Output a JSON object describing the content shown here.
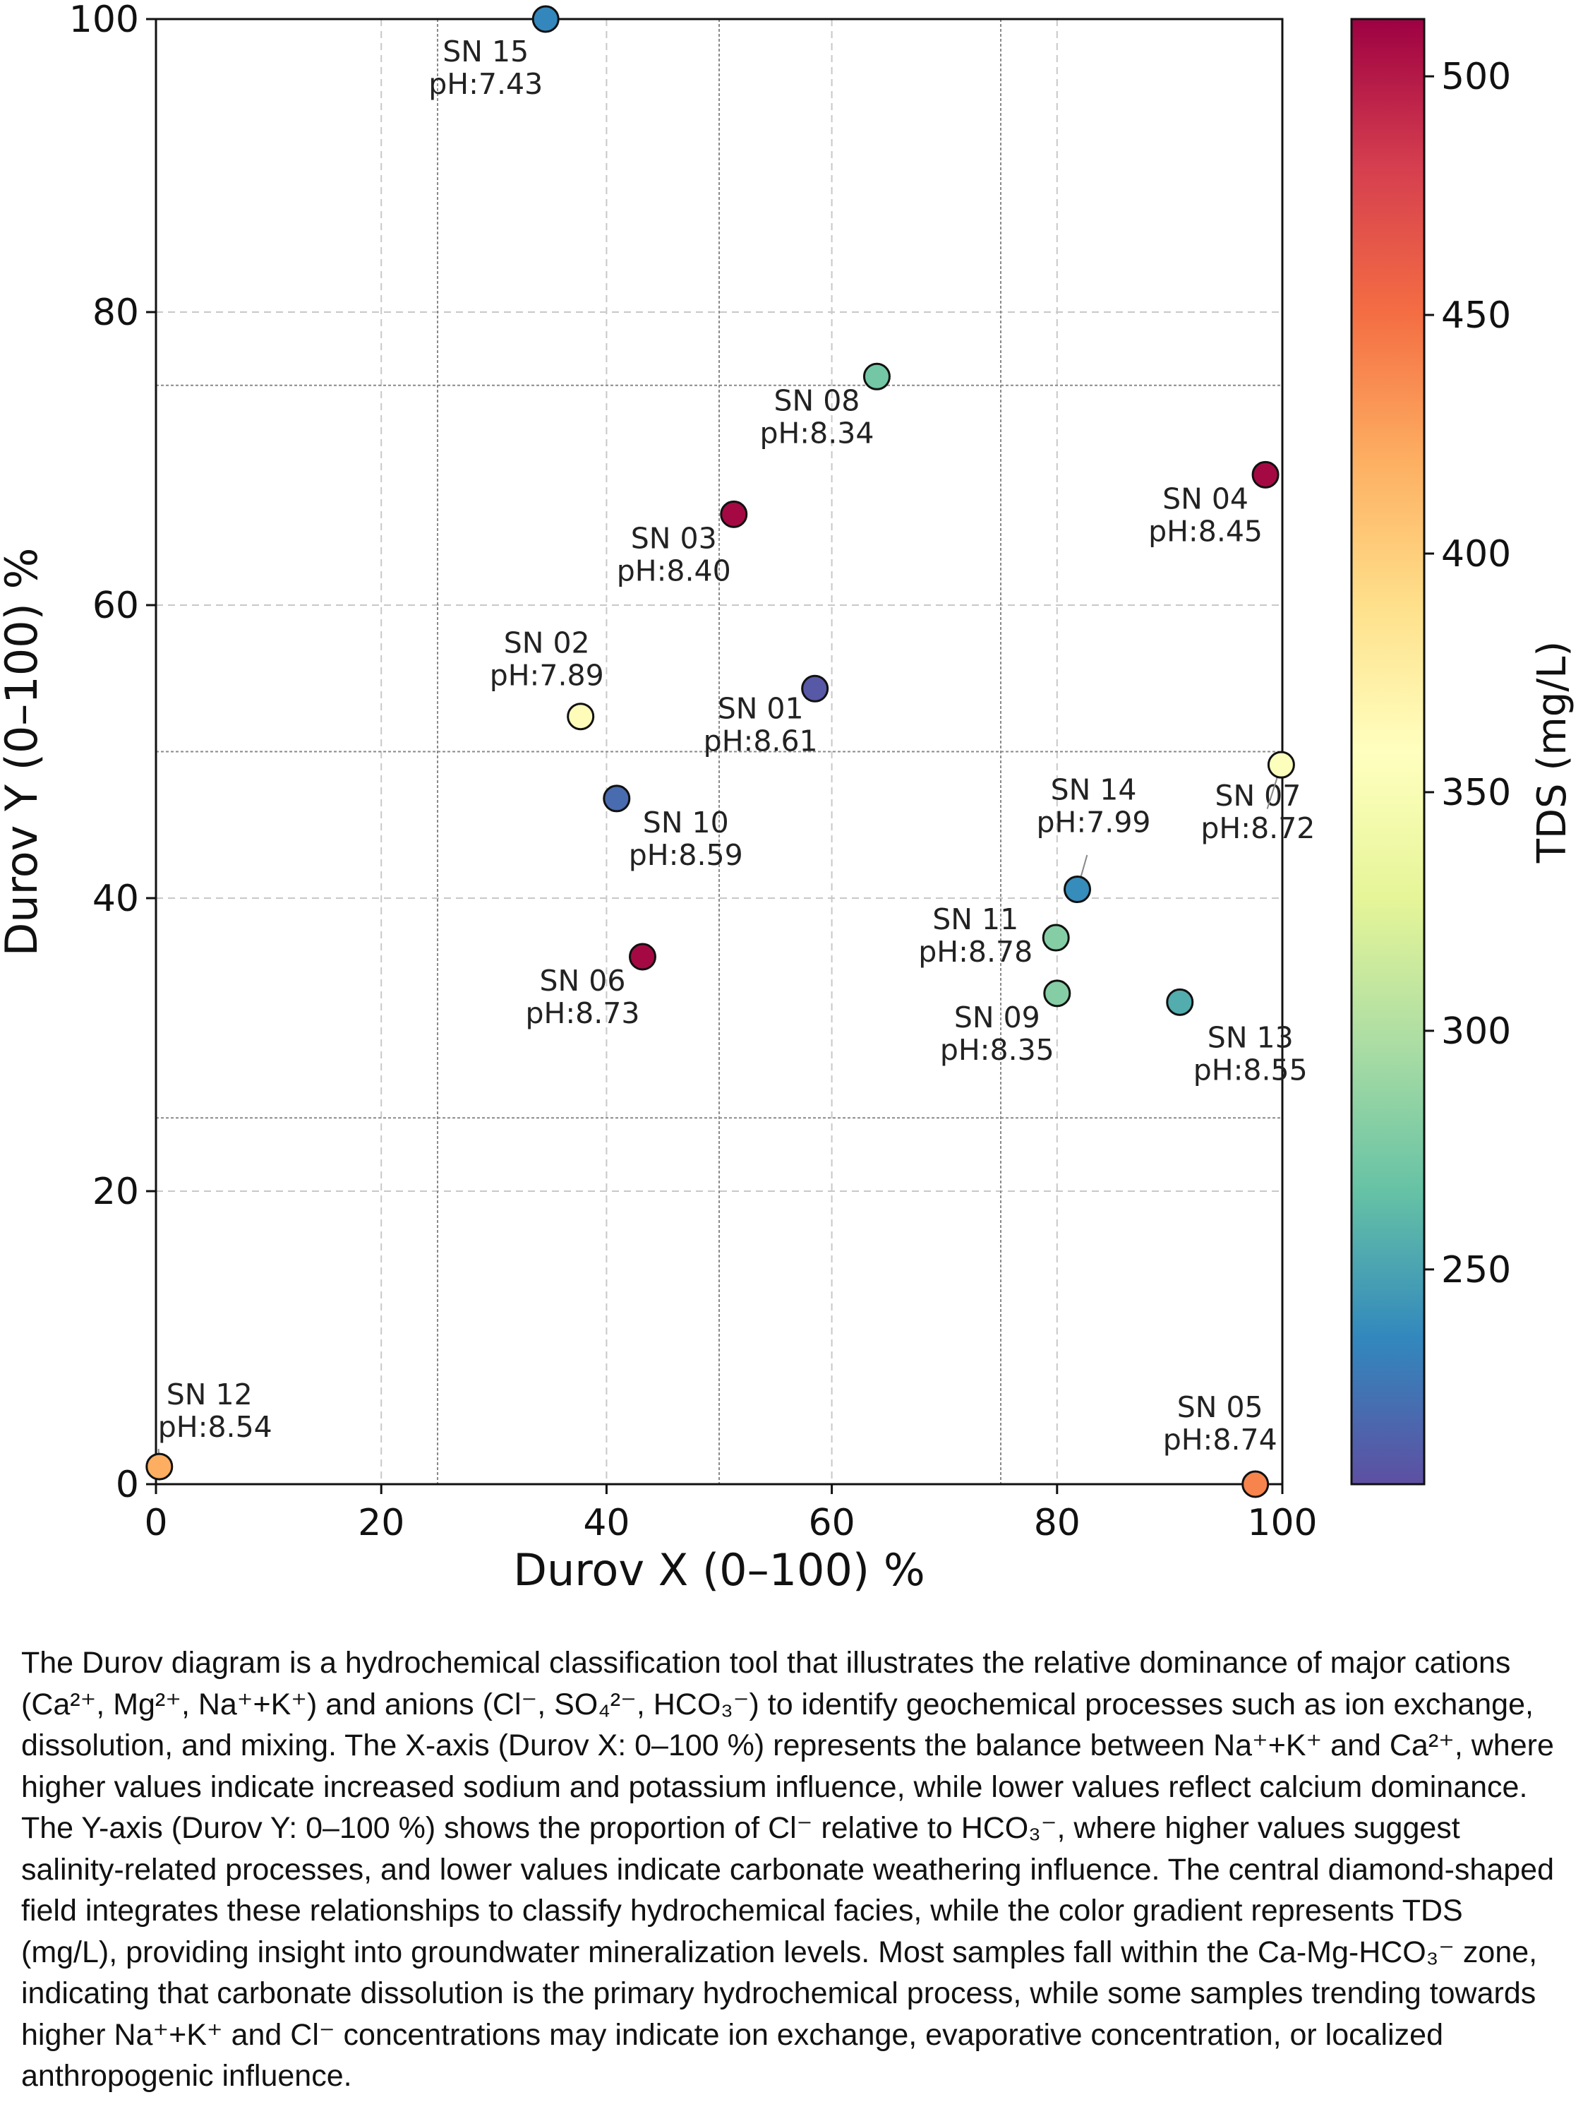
{
  "chart_data": {
    "type": "scatter",
    "xlabel": "Durov X (0–100) %",
    "ylabel": "Durov Y (0–100) %",
    "xlim": [
      0,
      100
    ],
    "ylim": [
      0,
      100
    ],
    "xticks": [
      "0",
      "20",
      "40",
      "60",
      "80",
      "100"
    ],
    "yticks": [
      "0",
      "20",
      "40",
      "60",
      "80",
      "100"
    ],
    "grid": true,
    "field_boundaries": {
      "x": [
        25,
        50,
        75
      ],
      "y": [
        25,
        50,
        75
      ]
    },
    "colorbar": {
      "label": "TDS (mg/L)",
      "range": [
        205,
        512
      ],
      "ticks": [
        "250",
        "300",
        "350",
        "400",
        "450",
        "500"
      ],
      "colormap": [
        "#5e4fa2",
        "#3288bd",
        "#66c2a5",
        "#abdda4",
        "#e6f598",
        "#ffffbf",
        "#fee08b",
        "#fdae61",
        "#f46d43",
        "#d53e4f",
        "#9e0142"
      ]
    },
    "points": [
      {
        "id": "SN 01",
        "ph": "pH:8.61",
        "x": 58.5,
        "y": 54.3,
        "tds": 210
      },
      {
        "id": "SN 02",
        "ph": "pH:7.89",
        "x": 37.7,
        "y": 52.4,
        "tds": 362
      },
      {
        "id": "SN 03",
        "ph": "pH:8.40",
        "x": 51.3,
        "y": 66.2,
        "tds": 508
      },
      {
        "id": "SN 04",
        "ph": "pH:8.45",
        "x": 98.5,
        "y": 68.9,
        "tds": 508
      },
      {
        "id": "SN 05",
        "ph": "pH:8.74",
        "x": 97.6,
        "y": 0.0,
        "tds": 440
      },
      {
        "id": "SN 06",
        "ph": "pH:8.73",
        "x": 43.2,
        "y": 36.0,
        "tds": 508
      },
      {
        "id": "SN 07",
        "ph": "pH:8.72",
        "x": 99.9,
        "y": 49.1,
        "tds": 355
      },
      {
        "id": "SN 08",
        "ph": "pH:8.34",
        "x": 64.0,
        "y": 75.6,
        "tds": 272
      },
      {
        "id": "SN 09",
        "ph": "pH:8.35",
        "x": 80.0,
        "y": 33.5,
        "tds": 280
      },
      {
        "id": "SN 10",
        "ph": "pH:8.59",
        "x": 40.9,
        "y": 46.8,
        "tds": 220
      },
      {
        "id": "SN 11",
        "ph": "pH:8.78",
        "x": 79.9,
        "y": 37.3,
        "tds": 280
      },
      {
        "id": "SN 12",
        "ph": "pH:8.54",
        "x": 0.3,
        "y": 1.2,
        "tds": 420
      },
      {
        "id": "SN 13",
        "ph": "pH:8.55",
        "x": 90.9,
        "y": 32.9,
        "tds": 255
      },
      {
        "id": "SN 14",
        "ph": "pH:7.99",
        "x": 81.8,
        "y": 40.6,
        "tds": 238
      },
      {
        "id": "SN 15",
        "ph": "pH:7.43",
        "x": 34.6,
        "y": 100.0,
        "tds": 235
      }
    ]
  },
  "caption": "The Durov diagram is a hydrochemical classification tool that illustrates the relative dominance of major cations (Ca²⁺, Mg²⁺, Na⁺+K⁺) and anions (Cl⁻, SO₄²⁻, HCO₃⁻) to identify geochemical processes such as ion exchange, dissolution, and mixing. The X-axis (Durov X: 0–100 %) represents the balance between Na⁺+K⁺ and Ca²⁺, where higher values indicate increased sodium and potassium influence, while lower values reflect calcium dominance. The Y-axis (Durov Y: 0–100 %) shows the proportion of Cl⁻ relative to HCO₃⁻, where higher values suggest salinity-related processes, and lower values indicate carbonate weathering influence. The central diamond-shaped field integrates these relationships to classify hydrochemical facies, while the color gradient represents TDS (mg/L), providing insight into groundwater mineralization levels. Most samples fall within the Ca-Mg-HCO₃⁻ zone, indicating that carbonate dissolution is the primary hydrochemical process, while some samples trending towards higher Na⁺+K⁺ and Cl⁻ concentrations may indicate ion exchange, evaporative concentration, or localized anthropogenic influence."
}
